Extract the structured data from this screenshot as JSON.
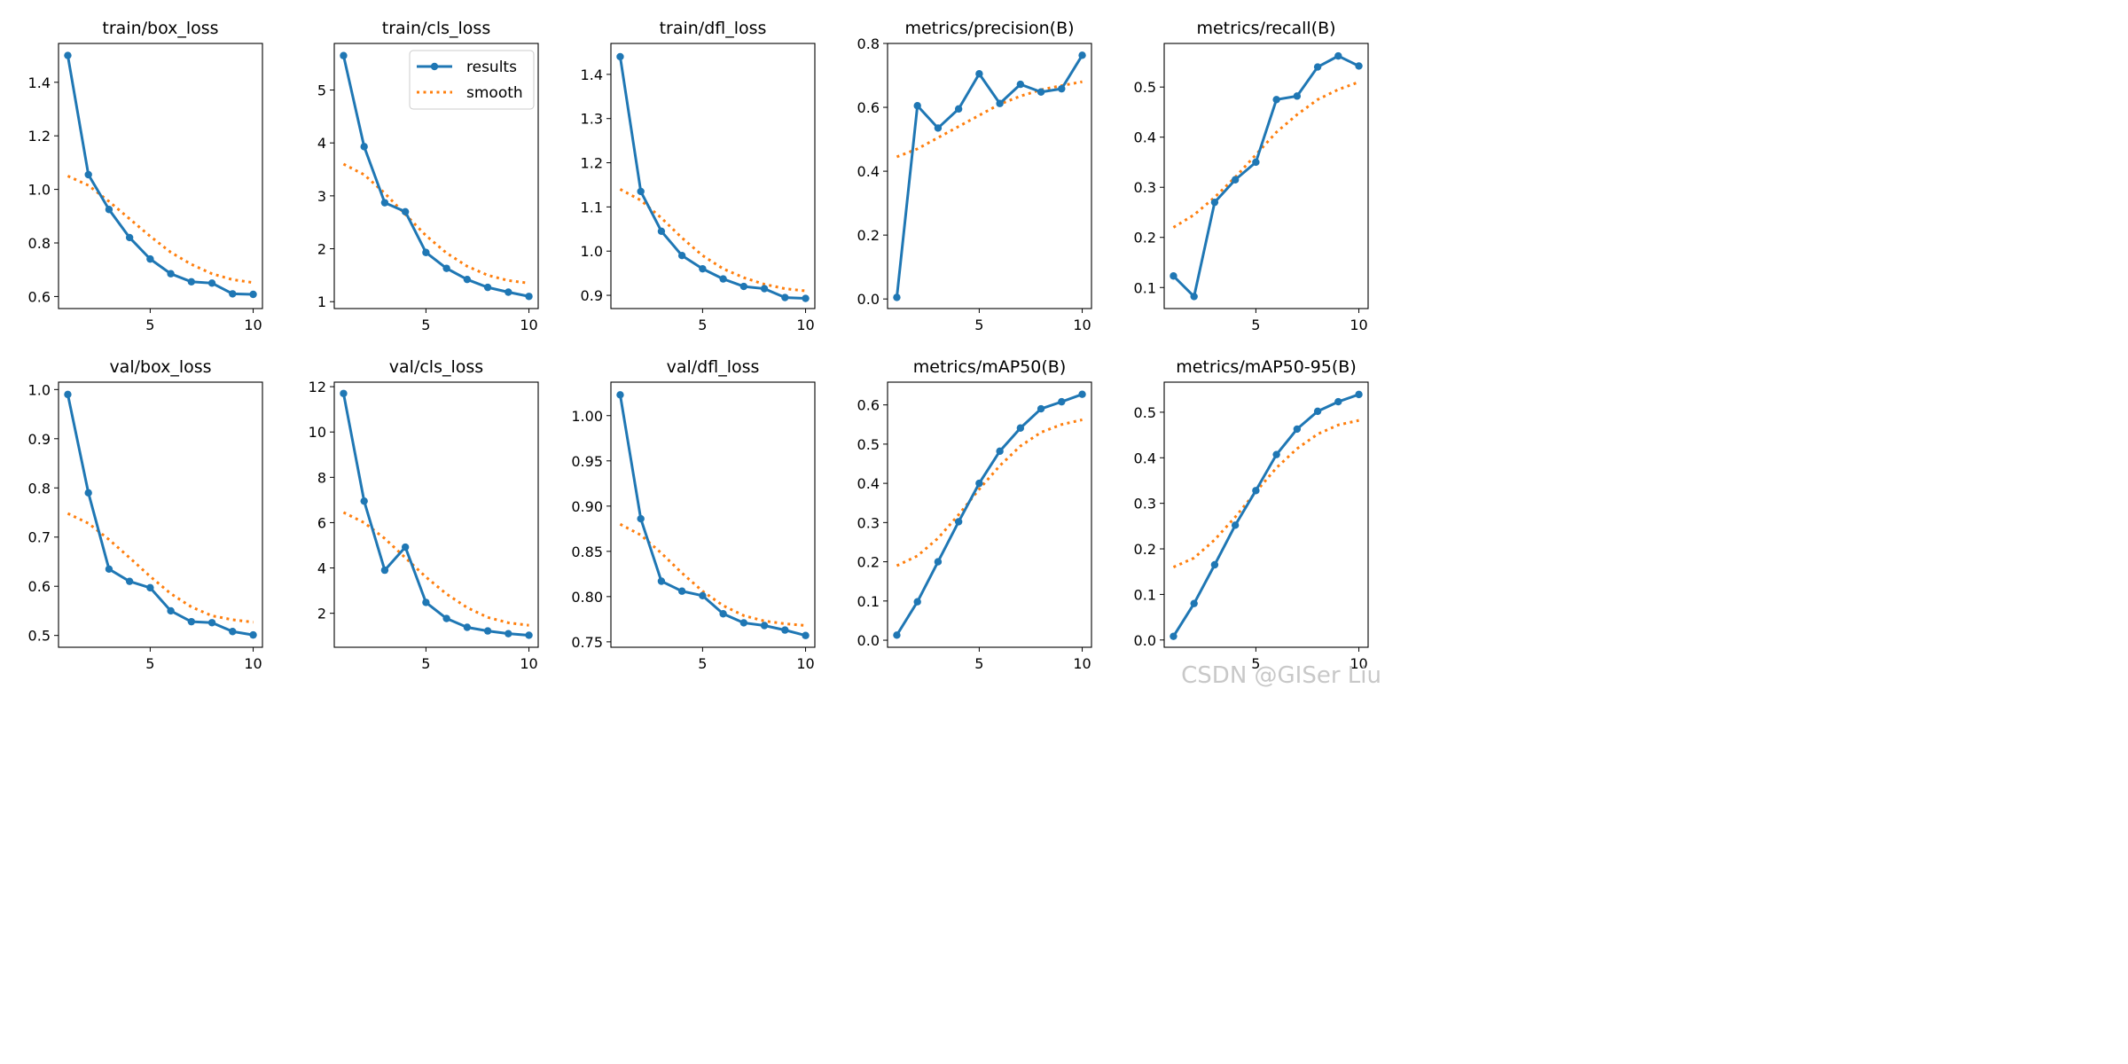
{
  "colors": {
    "results": "#1f77b4",
    "smooth": "#ff7f0e",
    "axes": "#000000",
    "watermark": "#c8c8c8"
  },
  "legend": {
    "results_label": "results",
    "smooth_label": "smooth",
    "placement": "top-right of train/cls_loss"
  },
  "watermark": "CSDN @GISer Liu",
  "chart_data": [
    {
      "type": "line",
      "title": "train/box_loss",
      "x": [
        1,
        2,
        3,
        4,
        5,
        6,
        7,
        8,
        9,
        10
      ],
      "series": [
        {
          "name": "results",
          "values": [
            1.5,
            1.055,
            0.925,
            0.82,
            0.74,
            0.685,
            0.655,
            0.65,
            0.61,
            0.608
          ]
        },
        {
          "name": "smooth",
          "values": [
            1.05,
            1.015,
            0.955,
            0.89,
            0.825,
            0.765,
            0.72,
            0.685,
            0.663,
            0.652
          ]
        }
      ],
      "xlim": [
        0.55,
        10.45
      ],
      "ylim": [
        0.555,
        1.545
      ],
      "xticks": [
        5,
        10
      ],
      "yticks": [
        0.6,
        0.8,
        1.0,
        1.2,
        1.4
      ],
      "ytick_labels": [
        "0.6",
        "0.8",
        "1.0",
        "1.2",
        "1.4"
      ]
    },
    {
      "type": "line",
      "title": "train/cls_loss",
      "x": [
        1,
        2,
        3,
        4,
        5,
        6,
        7,
        8,
        9,
        10
      ],
      "series": [
        {
          "name": "results",
          "values": [
            5.65,
            3.93,
            2.87,
            2.7,
            1.93,
            1.63,
            1.42,
            1.27,
            1.18,
            1.1
          ]
        },
        {
          "name": "smooth",
          "values": [
            3.6,
            3.4,
            3.05,
            2.65,
            2.25,
            1.92,
            1.67,
            1.5,
            1.4,
            1.35
          ]
        }
      ],
      "xlim": [
        0.55,
        10.45
      ],
      "ylim": [
        0.87,
        5.88
      ],
      "xticks": [
        5,
        10
      ],
      "yticks": [
        1,
        2,
        3,
        4,
        5
      ],
      "ytick_labels": [
        "1",
        "2",
        "3",
        "4",
        "5"
      ],
      "legend": true
    },
    {
      "type": "line",
      "title": "train/dfl_loss",
      "x": [
        1,
        2,
        3,
        4,
        5,
        6,
        7,
        8,
        9,
        10
      ],
      "series": [
        {
          "name": "results",
          "values": [
            1.44,
            1.135,
            1.045,
            0.99,
            0.96,
            0.937,
            0.92,
            0.915,
            0.895,
            0.893
          ]
        },
        {
          "name": "smooth",
          "values": [
            1.14,
            1.115,
            1.075,
            1.03,
            0.99,
            0.96,
            0.94,
            0.925,
            0.915,
            0.91
          ]
        }
      ],
      "xlim": [
        0.55,
        10.45
      ],
      "ylim": [
        0.87,
        1.47
      ],
      "xticks": [
        5,
        10
      ],
      "yticks": [
        0.9,
        1.0,
        1.1,
        1.2,
        1.3,
        1.4
      ],
      "ytick_labels": [
        "0.9",
        "1.0",
        "1.1",
        "1.2",
        "1.3",
        "1.4"
      ]
    },
    {
      "type": "line",
      "title": "metrics/precision(B)",
      "x": [
        1,
        2,
        3,
        4,
        5,
        6,
        7,
        8,
        9,
        10
      ],
      "series": [
        {
          "name": "results",
          "values": [
            0.005,
            0.605,
            0.535,
            0.595,
            0.705,
            0.612,
            0.672,
            0.648,
            0.658,
            0.763
          ]
        },
        {
          "name": "smooth",
          "values": [
            0.445,
            0.47,
            0.505,
            0.54,
            0.575,
            0.61,
            0.635,
            0.655,
            0.668,
            0.68
          ]
        }
      ],
      "xlim": [
        0.55,
        10.45
      ],
      "ylim": [
        -0.03,
        0.8
      ],
      "xticks": [
        5,
        10
      ],
      "yticks": [
        0.0,
        0.2,
        0.4,
        0.6,
        0.8
      ],
      "ytick_labels": [
        "0.0",
        "0.2",
        "0.4",
        "0.6",
        "0.8"
      ]
    },
    {
      "type": "line",
      "title": "metrics/recall(B)",
      "x": [
        1,
        2,
        3,
        4,
        5,
        6,
        7,
        8,
        9,
        10
      ],
      "series": [
        {
          "name": "results",
          "values": [
            0.123,
            0.082,
            0.27,
            0.315,
            0.35,
            0.475,
            0.482,
            0.54,
            0.562,
            0.542
          ]
        },
        {
          "name": "smooth",
          "values": [
            0.22,
            0.245,
            0.28,
            0.32,
            0.365,
            0.41,
            0.445,
            0.475,
            0.495,
            0.51
          ]
        }
      ],
      "xlim": [
        0.55,
        10.45
      ],
      "ylim": [
        0.058,
        0.587
      ],
      "xticks": [
        5,
        10
      ],
      "yticks": [
        0.1,
        0.2,
        0.3,
        0.4,
        0.5
      ],
      "ytick_labels": [
        "0.1",
        "0.2",
        "0.3",
        "0.4",
        "0.5"
      ]
    },
    {
      "type": "line",
      "title": "val/box_loss",
      "x": [
        1,
        2,
        3,
        4,
        5,
        6,
        7,
        8,
        9,
        10
      ],
      "series": [
        {
          "name": "results",
          "values": [
            0.99,
            0.79,
            0.635,
            0.61,
            0.597,
            0.55,
            0.528,
            0.526,
            0.508,
            0.501
          ]
        },
        {
          "name": "smooth",
          "values": [
            0.748,
            0.728,
            0.695,
            0.658,
            0.62,
            0.585,
            0.558,
            0.54,
            0.532,
            0.527
          ]
        }
      ],
      "xlim": [
        0.55,
        10.45
      ],
      "ylim": [
        0.476,
        1.015
      ],
      "xticks": [
        5,
        10
      ],
      "yticks": [
        0.5,
        0.6,
        0.7,
        0.8,
        0.9,
        1.0
      ],
      "ytick_labels": [
        "0.5",
        "0.6",
        "0.7",
        "0.8",
        "0.9",
        "1.0"
      ]
    },
    {
      "type": "line",
      "title": "val/cls_loss",
      "x": [
        1,
        2,
        3,
        4,
        5,
        6,
        7,
        8,
        9,
        10
      ],
      "series": [
        {
          "name": "results",
          "values": [
            11.7,
            6.95,
            3.9,
            4.92,
            2.48,
            1.77,
            1.38,
            1.22,
            1.1,
            1.03
          ]
        },
        {
          "name": "smooth",
          "values": [
            6.45,
            6.0,
            5.3,
            4.45,
            3.6,
            2.85,
            2.25,
            1.82,
            1.58,
            1.47
          ]
        }
      ],
      "xlim": [
        0.55,
        10.45
      ],
      "ylim": [
        0.5,
        12.2
      ],
      "xticks": [
        5,
        10
      ],
      "yticks": [
        2,
        4,
        6,
        8,
        10,
        12
      ],
      "ytick_labels": [
        "2",
        "4",
        "6",
        "8",
        "10",
        "12"
      ]
    },
    {
      "type": "line",
      "title": "val/dfl_loss",
      "x": [
        1,
        2,
        3,
        4,
        5,
        6,
        7,
        8,
        9,
        10
      ],
      "series": [
        {
          "name": "results",
          "values": [
            1.023,
            0.886,
            0.817,
            0.806,
            0.801,
            0.781,
            0.771,
            0.768,
            0.763,
            0.757
          ]
        },
        {
          "name": "smooth",
          "values": [
            0.88,
            0.868,
            0.848,
            0.826,
            0.806,
            0.79,
            0.779,
            0.773,
            0.77,
            0.768
          ]
        }
      ],
      "xlim": [
        0.55,
        10.45
      ],
      "ylim": [
        0.744,
        1.037
      ],
      "xticks": [
        5,
        10
      ],
      "yticks": [
        0.75,
        0.8,
        0.85,
        0.9,
        0.95,
        1.0
      ],
      "ytick_labels": [
        "0.75",
        "0.80",
        "0.85",
        "0.90",
        "0.95",
        "1.00"
      ]
    },
    {
      "type": "line",
      "title": "metrics/mAP50(B)",
      "x": [
        1,
        2,
        3,
        4,
        5,
        6,
        7,
        8,
        9,
        10
      ],
      "series": [
        {
          "name": "results",
          "values": [
            0.013,
            0.098,
            0.2,
            0.302,
            0.4,
            0.482,
            0.541,
            0.59,
            0.608,
            0.627
          ]
        },
        {
          "name": "smooth",
          "values": [
            0.19,
            0.215,
            0.26,
            0.32,
            0.385,
            0.445,
            0.495,
            0.53,
            0.55,
            0.562
          ]
        }
      ],
      "xlim": [
        0.55,
        10.45
      ],
      "ylim": [
        -0.018,
        0.658
      ],
      "xticks": [
        5,
        10
      ],
      "yticks": [
        0.0,
        0.1,
        0.2,
        0.3,
        0.4,
        0.5,
        0.6
      ],
      "ytick_labels": [
        "0.0",
        "0.1",
        "0.2",
        "0.3",
        "0.4",
        "0.5",
        "0.6"
      ]
    },
    {
      "type": "line",
      "title": "metrics/mAP50-95(B)",
      "x": [
        1,
        2,
        3,
        4,
        5,
        6,
        7,
        8,
        9,
        10
      ],
      "series": [
        {
          "name": "results",
          "values": [
            0.008,
            0.08,
            0.165,
            0.252,
            0.328,
            0.407,
            0.463,
            0.502,
            0.523,
            0.539
          ]
        },
        {
          "name": "smooth",
          "values": [
            0.16,
            0.18,
            0.22,
            0.27,
            0.325,
            0.378,
            0.42,
            0.452,
            0.472,
            0.482
          ]
        }
      ],
      "xlim": [
        0.55,
        10.45
      ],
      "ylim": [
        -0.016,
        0.566
      ],
      "xticks": [
        5,
        10
      ],
      "yticks": [
        0.0,
        0.1,
        0.2,
        0.3,
        0.4,
        0.5
      ],
      "ytick_labels": [
        "0.0",
        "0.1",
        "0.2",
        "0.3",
        "0.4",
        "0.5"
      ]
    }
  ]
}
